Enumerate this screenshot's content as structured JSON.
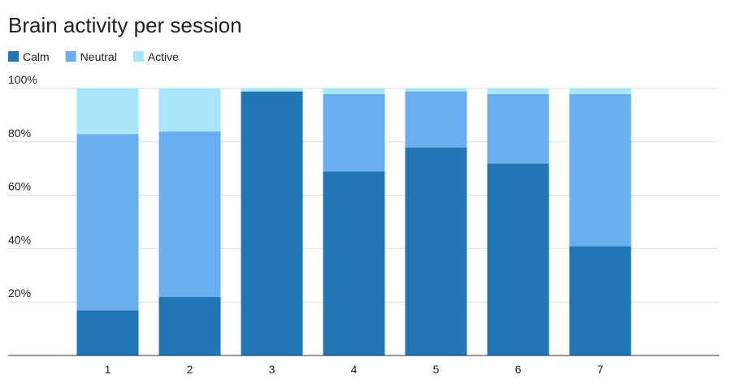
{
  "chart_data": {
    "type": "stacked_bar",
    "title": "Brain activity per session",
    "categories": [
      "1",
      "2",
      "3",
      "4",
      "5",
      "6",
      "7",
      null
    ],
    "series": [
      {
        "name": "Calm",
        "color": "#2176b3",
        "values": [
          17,
          22,
          99,
          69,
          78,
          72,
          41,
          null
        ]
      },
      {
        "name": "Neutral",
        "color": "#6aaef0",
        "values": [
          66,
          62,
          0,
          29,
          21,
          26,
          57,
          null
        ]
      },
      {
        "name": "Active",
        "color": "#a9e6f9",
        "values": [
          17,
          16,
          1,
          2,
          1,
          2,
          2,
          null
        ]
      }
    ],
    "ylim": [
      0,
      100
    ],
    "yticks": [
      {
        "value": 20,
        "label": "20%"
      },
      {
        "value": 40,
        "label": "40%"
      },
      {
        "value": 60,
        "label": "60%"
      },
      {
        "value": 80,
        "label": "80%"
      },
      {
        "value": 100,
        "label": "100%"
      }
    ],
    "grid": true,
    "legend": "top-left"
  }
}
